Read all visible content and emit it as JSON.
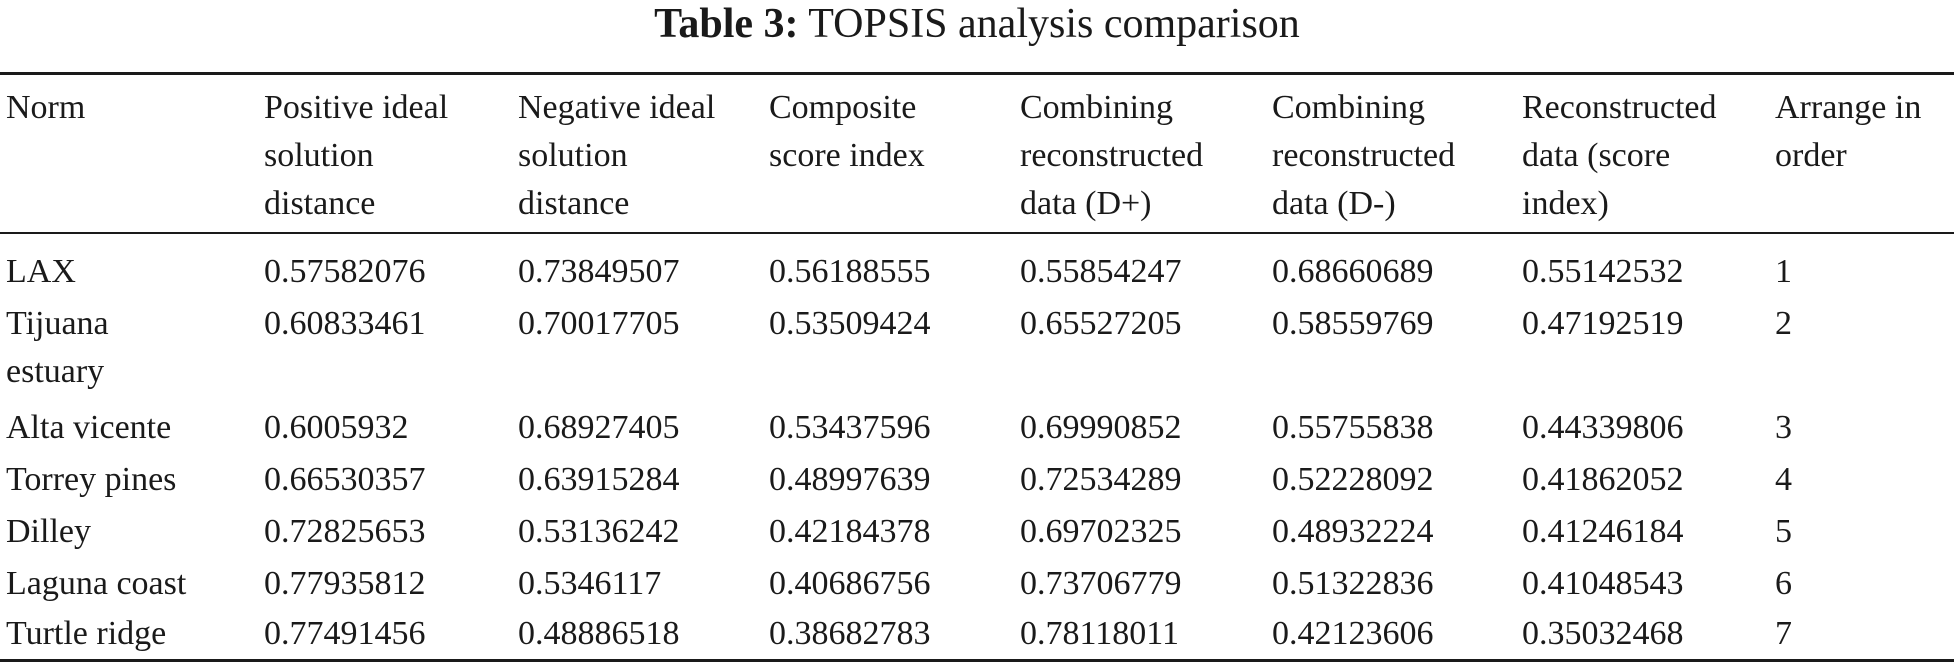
{
  "caption": {
    "label": "Table 3:",
    "title": "TOPSIS analysis comparison"
  },
  "table": {
    "columns": [
      "Norm",
      "Positive ideal\nsolution\ndistance",
      "Negative ideal\nsolution\ndistance",
      "Composite\nscore index",
      "Combining\nreconstructed\ndata (D+)",
      "Combining\nreconstructed\ndata (D-)",
      "Reconstructed\ndata (score\nindex)",
      "Arrange in\norder"
    ],
    "rows": [
      [
        "LAX",
        "0.57582076",
        "0.73849507",
        "0.56188555",
        "0.55854247",
        "0.68660689",
        "0.55142532",
        "1"
      ],
      [
        "Tijuana\nestuary",
        "0.60833461",
        "0.70017705",
        "0.53509424",
        "0.65527205",
        "0.58559769",
        "0.47192519",
        "2"
      ],
      [
        "Alta vicente",
        "0.6005932",
        "0.68927405",
        "0.53437596",
        "0.69990852",
        "0.55755838",
        "0.44339806",
        "3"
      ],
      [
        "Torrey pines",
        "0.66530357",
        "0.63915284",
        "0.48997639",
        "0.72534289",
        "0.52228092",
        "0.41862052",
        "4"
      ],
      [
        "Dilley",
        "0.72825653",
        "0.53136242",
        "0.42184378",
        "0.69702325",
        "0.48932224",
        "0.41246184",
        "5"
      ],
      [
        "Laguna coast",
        "0.77935812",
        "0.5346117",
        "0.40686756",
        "0.73706779",
        "0.51322836",
        "0.41048543",
        "6"
      ],
      [
        "Turtle ridge",
        "0.77491456",
        "0.48886518",
        "0.38682783",
        "0.78118011",
        "0.42123606",
        "0.35032468",
        "7"
      ]
    ]
  }
}
